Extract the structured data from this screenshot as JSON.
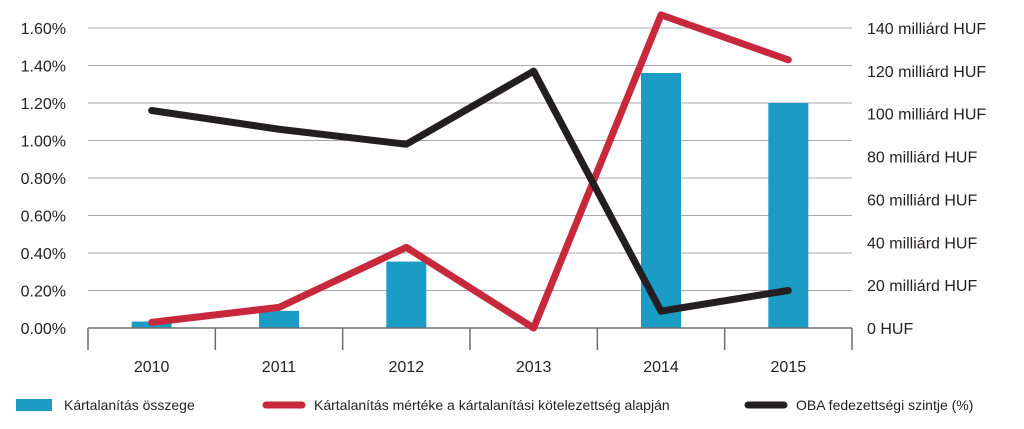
{
  "chart_data": {
    "type": "bar+line",
    "categories": [
      "2010",
      "2011",
      "2012",
      "2013",
      "2014",
      "2015"
    ],
    "left_axis": {
      "ticks": [
        "0.00%",
        "0.20%",
        "0.40%",
        "0.60%",
        "0.80%",
        "1.00%",
        "1.20%",
        "1.40%",
        "1.60%"
      ],
      "range": [
        0,
        1.6
      ],
      "unit": "%"
    },
    "right_axis": {
      "ticks": [
        "0 HUF",
        "20 milliárd HUF",
        "40 milliárd HUF",
        "60 milliárd HUF",
        "80 milliárd HUF",
        "100 milliárd HUF",
        "120 milliárd HUF",
        "140 milliárd HUF"
      ],
      "range": [
        0,
        140
      ],
      "unit": "milliárd HUF"
    },
    "series": [
      {
        "name": "Kártalanítás összege",
        "kind": "bar",
        "axis": "right",
        "color": "#1a9cc4",
        "values": [
          3,
          8,
          31,
          0,
          119,
          105
        ]
      },
      {
        "name": "Kártalanítás mértéke a kártalanítási kötelezettség alapján",
        "kind": "line",
        "axis": "left",
        "color": "#c8283c",
        "values": [
          0.03,
          0.11,
          0.43,
          0.0,
          1.67,
          1.43
        ]
      },
      {
        "name": "OBA fedezettségi szintje (%)",
        "kind": "line",
        "axis": "left",
        "color": "#231f20",
        "values": [
          1.16,
          1.06,
          0.98,
          1.37,
          0.09,
          0.2
        ]
      }
    ],
    "grid": true,
    "legend_position": "bottom"
  }
}
